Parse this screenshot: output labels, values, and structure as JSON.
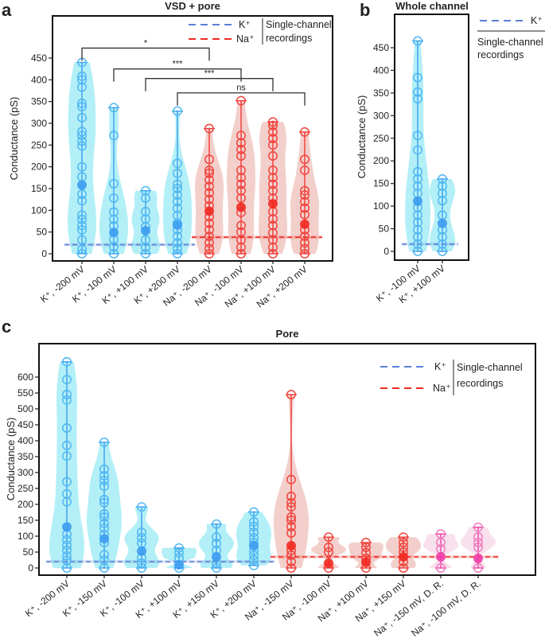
{
  "colors": {
    "k_point": "#4fb8f2",
    "k_line": "#3a9ff0",
    "k_violin": "#a6ecf6",
    "k_mean": "#3d9cf0",
    "k_ref": "#5a7fd6",
    "na_point": "#f0453f",
    "na_line": "#ef3a34",
    "na_violin": "#f1c7c2",
    "na_mean": "#f02a22",
    "na_ref": "#f02a22",
    "dr_point": "#f07cc0",
    "dr_line": "#ee3da8",
    "dr_violin": "#f7dbe9",
    "dr_mean": "#ee3da8"
  },
  "chart_data": [
    {
      "panel": "a",
      "type": "violin",
      "title": "VSD + pore",
      "ylabel": "Conductance (pS)",
      "ylim": [
        0,
        450
      ],
      "yticks": [
        0,
        50,
        100,
        150,
        200,
        250,
        300,
        350,
        400,
        450
      ],
      "legend": {
        "placement": "top-right",
        "entries": [
          {
            "label": "K⁺",
            "color": "k_ref"
          },
          {
            "label": "Na⁺",
            "color": "na_ref"
          }
        ],
        "group_label": [
          "Single-channel",
          "recordings"
        ]
      },
      "reference_lines": [
        {
          "ion": "K⁺",
          "value": 21,
          "from": 0,
          "to": 3,
          "color": "k_ref"
        },
        {
          "ion": "Na⁺",
          "value": 38,
          "from": 4,
          "to": 7,
          "color": "na_ref"
        }
      ],
      "significance": [
        {
          "from": 0,
          "to": 4,
          "level": 473,
          "label": "*"
        },
        {
          "from": 1,
          "to": 5,
          "level": 425,
          "label": "***"
        },
        {
          "from": 2,
          "to": 6,
          "level": 403,
          "label": "***"
        },
        {
          "from": 3,
          "to": 7,
          "level": 370,
          "label": "ns"
        }
      ],
      "groups": [
        {
          "label": "K⁺, -200 mV",
          "color": "k",
          "mean": 158,
          "values": [
            440,
            408,
            400,
            383,
            346,
            338,
            313,
            281,
            272,
            259,
            248,
            200,
            177,
            137,
            122,
            89,
            79,
            65,
            55,
            32,
            10,
            0
          ]
        },
        {
          "label": "K⁺, -100 mV",
          "color": "k",
          "mean": 49,
          "values": [
            336,
            272,
            161,
            128,
            96,
            79,
            64,
            33,
            16,
            0
          ]
        },
        {
          "label": "K⁺, +100 mV",
          "color": "k",
          "mean": 53,
          "values": [
            145,
            128,
            97,
            80,
            62,
            32,
            15,
            0
          ]
        },
        {
          "label": "K⁺, +200 mV",
          "color": "k",
          "mean": 66,
          "values": [
            328,
            208,
            185,
            160,
            150,
            135,
            120,
            105,
            88,
            70,
            55,
            40,
            25,
            12,
            0
          ]
        },
        {
          "label": "Na⁺, -200 mV",
          "color": "na",
          "mean": 98,
          "values": [
            288,
            217,
            192,
            185,
            170,
            155,
            140,
            125,
            110,
            85,
            70,
            55,
            40,
            25,
            12,
            0
          ]
        },
        {
          "label": "Na⁺, -100 mV",
          "color": "na",
          "mean": 107,
          "values": [
            352,
            272,
            255,
            240,
            225,
            192,
            175,
            160,
            145,
            128,
            95,
            65,
            50,
            32,
            15,
            0
          ]
        },
        {
          "label": "Na⁺, +100 mV",
          "color": "na",
          "mean": 115,
          "values": [
            303,
            295,
            280,
            265,
            250,
            225,
            192,
            175,
            160,
            145,
            128,
            97,
            80,
            65,
            48,
            32,
            15,
            0
          ]
        },
        {
          "label": "Na⁺, +200 mV",
          "color": "na",
          "mean": 68,
          "values": [
            280,
            217,
            192,
            145,
            135,
            120,
            105,
            90,
            55,
            40,
            25,
            12,
            0
          ]
        }
      ]
    },
    {
      "panel": "b",
      "type": "violin",
      "title": "Whole channel",
      "ylabel": "Conductance (pS)",
      "ylim": [
        0,
        450
      ],
      "yticks": [
        0,
        50,
        100,
        150,
        200,
        250,
        300,
        350,
        400,
        450
      ],
      "legend": {
        "placement": "outside-right",
        "entries": [
          {
            "label": "K⁺",
            "color": "k_ref"
          }
        ],
        "group_label": [
          "Single-channel",
          "recordings"
        ]
      },
      "reference_lines": [
        {
          "ion": "K⁺",
          "value": 16,
          "from": 0,
          "to": 1,
          "color": "k_ref"
        }
      ],
      "significance": [],
      "groups": [
        {
          "label": "K⁺, -100 mV",
          "color": "k",
          "mean": 111,
          "values": [
            465,
            384,
            352,
            337,
            256,
            224,
            176,
            160,
            144,
            128,
            97,
            80,
            64,
            48,
            32,
            16,
            0
          ]
        },
        {
          "label": "K⁺, +100 mV",
          "color": "k",
          "mean": 62,
          "values": [
            160,
            144,
            128,
            112,
            80,
            48,
            32,
            16,
            0
          ]
        }
      ]
    },
    {
      "panel": "c",
      "type": "violin",
      "title": "Pore",
      "ylabel": "Conductance (pS)",
      "ylim": [
        0,
        650
      ],
      "yticks": [
        0,
        50,
        100,
        150,
        200,
        250,
        300,
        350,
        400,
        450,
        500,
        550,
        600
      ],
      "legend": {
        "placement": "top-right",
        "entries": [
          {
            "label": "K⁺",
            "color": "k_ref"
          },
          {
            "label": "Na⁺",
            "color": "na_ref"
          }
        ],
        "group_label": [
          "Single-channel",
          "recordings"
        ]
      },
      "reference_lines": [
        {
          "ion": "K⁺",
          "value": 20,
          "from": 0,
          "to": 5,
          "color": "k_ref"
        },
        {
          "ion": "Na⁺",
          "value": 35,
          "from": 6,
          "to": 11,
          "color": "na_ref"
        }
      ],
      "significance": [],
      "groups": [
        {
          "label": "K⁺, -200 mV",
          "color": "k",
          "mean": 129,
          "values": [
            648,
            592,
            545,
            528,
            440,
            385,
            352,
            271,
            233,
            208,
            106,
            89,
            72,
            56,
            38,
            24,
            0
          ]
        },
        {
          "label": "K⁺, -150 mV",
          "color": "k",
          "mean": 92,
          "values": [
            395,
            310,
            290,
            275,
            257,
            215,
            205,
            170,
            160,
            140,
            125,
            105,
            80,
            42,
            25,
            0
          ]
        },
        {
          "label": "K⁺, -100 mV",
          "color": "k",
          "mean": 53,
          "values": [
            192,
            112,
            95,
            78,
            32,
            15,
            0
          ]
        },
        {
          "label": "K⁺, +100 mV",
          "color": "k",
          "mean": 10,
          "values": [
            63,
            48,
            32,
            0
          ]
        },
        {
          "label": "K⁺, +150 mV",
          "color": "k",
          "mean": 35,
          "values": [
            138,
            97,
            77,
            55,
            15,
            0
          ]
        },
        {
          "label": "K⁺, +200 mV",
          "color": "k",
          "mean": 70,
          "values": [
            176,
            145,
            130,
            112,
            95,
            80,
            55,
            40,
            25,
            8
          ]
        },
        {
          "label": "Na⁺, -150 mV",
          "color": "na",
          "mean": 70,
          "values": [
            545,
            278,
            225,
            205,
            192,
            160,
            150,
            130,
            110,
            55,
            40,
            20,
            0
          ]
        },
        {
          "label": "Na⁺, -100 mV",
          "color": "na",
          "mean": 15,
          "values": [
            97,
            65,
            50,
            0
          ]
        },
        {
          "label": "Na⁺, +100 mV",
          "color": "na",
          "mean": 18,
          "values": [
            80,
            65,
            48,
            30,
            0
          ]
        },
        {
          "label": "Na⁺, +150 mV",
          "color": "na",
          "mean": 35,
          "values": [
            97,
            80,
            65,
            50,
            20,
            0
          ]
        },
        {
          "label": "Na⁺, -150 mV, D. R.",
          "color": "dr",
          "mean": 35,
          "values": [
            107,
            80,
            60,
            0
          ]
        },
        {
          "label": "Na⁺, -100 mV, D. R.",
          "color": "dr",
          "mean": 30,
          "values": [
            128,
            97,
            80,
            65,
            0
          ]
        }
      ]
    }
  ]
}
